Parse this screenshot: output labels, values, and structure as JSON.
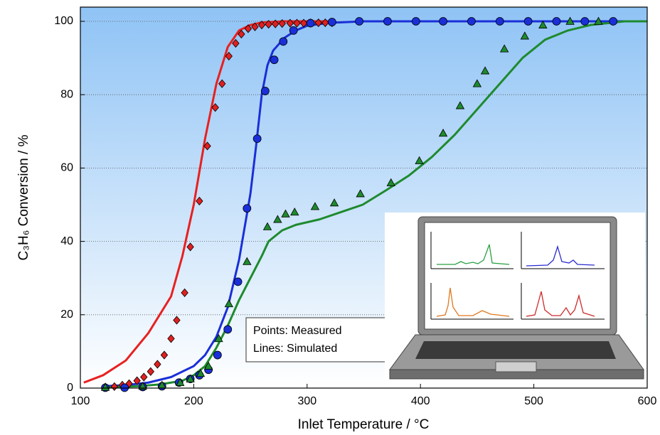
{
  "chart_data": {
    "type": "scatter",
    "x_label": "Inlet Temperature / °C",
    "y_label": "C₃H₆ Conversion / %",
    "xlim": [
      100,
      600
    ],
    "xticks": [
      100,
      200,
      300,
      400,
      500,
      600
    ],
    "ylim": [
      0,
      100
    ],
    "yticks": [
      0,
      20,
      40,
      60,
      80,
      100
    ],
    "grid": true,
    "annotations": [
      "Points: Measured",
      "Lines:  Simulated"
    ],
    "series": [
      {
        "mode": "markers",
        "marker": "diamond",
        "color": "#e02020",
        "x": [
          122,
          130,
          137,
          143,
          150,
          156,
          162,
          168,
          174,
          180,
          185,
          192,
          197,
          205,
          212,
          219,
          225,
          231,
          237,
          242,
          248,
          254,
          260,
          266,
          272,
          278,
          285,
          291,
          297,
          303,
          310,
          316,
          322
        ],
        "values": [
          0.3,
          0.4,
          0.8,
          1.2,
          2,
          3,
          4.5,
          6.5,
          9,
          13.5,
          18.5,
          26,
          38.5,
          51,
          66,
          76.5,
          83,
          90.5,
          94,
          96.5,
          98,
          98.5,
          99,
          99.2,
          99.3,
          99.4,
          99.5,
          99.5,
          99.5,
          99.6,
          99.6,
          99.6,
          99.6
        ]
      },
      {
        "mode": "markers",
        "marker": "circle",
        "color": "#1a2fd8",
        "x": [
          122,
          139,
          155,
          172,
          187,
          197,
          205,
          213,
          221,
          230,
          239,
          247,
          256,
          263,
          271,
          279,
          288,
          303,
          322,
          346,
          371,
          396,
          420,
          445,
          470,
          495,
          520,
          545,
          570
        ],
        "values": [
          0.1,
          0.1,
          0.3,
          0.5,
          1.5,
          2.5,
          3.5,
          5,
          9,
          16,
          29,
          49,
          68,
          81,
          89.5,
          94.5,
          97.5,
          99.5,
          99.8,
          100,
          100,
          100,
          100,
          100,
          100,
          100,
          100,
          100,
          100
        ]
      },
      {
        "mode": "markers",
        "marker": "triangle",
        "color": "#1e8a2e",
        "x": [
          122,
          155,
          172,
          188,
          197,
          206,
          213,
          222,
          231,
          247,
          265,
          274,
          281,
          289,
          307,
          324,
          347,
          374,
          399,
          420,
          435,
          450,
          457,
          474,
          492,
          508,
          532,
          557
        ],
        "values": [
          0.2,
          0.5,
          0.8,
          1.5,
          2.5,
          4,
          6,
          13.5,
          23,
          34.5,
          44,
          46,
          47.5,
          48,
          49.5,
          50.5,
          53,
          56,
          62,
          69.5,
          77,
          83,
          86.5,
          92.5,
          96,
          99,
          100,
          100
        ]
      },
      {
        "mode": "line",
        "color": "#e82020",
        "x": [
          103,
          120,
          140,
          160,
          180,
          190,
          200,
          210,
          220,
          230,
          240,
          250,
          260,
          280,
          300,
          320
        ],
        "values": [
          1.5,
          3.5,
          7.5,
          15,
          25,
          36,
          50,
          68,
          83,
          93,
          97.5,
          99,
          99.7,
          100,
          100,
          100
        ]
      },
      {
        "mode": "line",
        "color": "#1a2fd8",
        "x": [
          120,
          140,
          160,
          180,
          200,
          210,
          220,
          230,
          240,
          250,
          255,
          260,
          265,
          270,
          280,
          290,
          300,
          320,
          350,
          400,
          500,
          600
        ],
        "values": [
          0.5,
          0.8,
          1.5,
          3,
          6,
          9,
          14,
          22,
          35,
          53,
          66,
          80,
          88,
          92,
          95.5,
          97.5,
          98.8,
          99.6,
          100,
          100,
          100,
          100
        ]
      },
      {
        "mode": "line",
        "color": "#1e8a2e",
        "x": [
          120,
          150,
          170,
          190,
          200,
          210,
          220,
          230,
          240,
          250,
          260,
          266,
          278,
          290,
          311,
          330,
          349,
          370,
          390,
          410,
          430,
          450,
          470,
          490,
          510,
          530,
          550,
          580,
          600
        ],
        "values": [
          0.2,
          0.5,
          1,
          2,
          3.5,
          6,
          11,
          17,
          24,
          30,
          36,
          40,
          43,
          44.5,
          46,
          48,
          50,
          54,
          58,
          63,
          69,
          76,
          83,
          90,
          95,
          97.5,
          99,
          100,
          100
        ]
      }
    ]
  }
}
